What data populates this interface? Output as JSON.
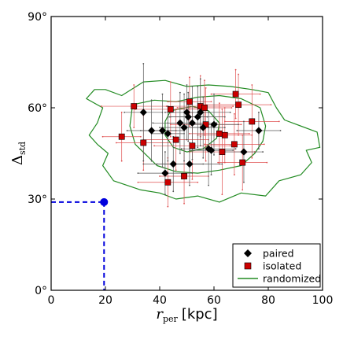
{
  "chart_data": {
    "type": "scatter",
    "xlim": [
      0,
      100
    ],
    "ylim": [
      0,
      90
    ],
    "x_ticks": [
      0,
      20,
      40,
      60,
      80,
      100
    ],
    "y_ticks": [
      0,
      30,
      60,
      90
    ],
    "x_tick_labels": [
      "0",
      "20",
      "40",
      "60",
      "80",
      "100"
    ],
    "y_tick_labels": [
      "0°",
      "30°",
      "60°",
      "90°"
    ],
    "xlabel_symbol": "r",
    "xlabel_subscript": "per",
    "xlabel_unit": "[kpc]",
    "ylabel_symbol": "Δ",
    "ylabel_subscript": "std",
    "grid": false,
    "legend_position": "lower-right",
    "legend": [
      {
        "label": "paired",
        "marker": "diamond",
        "color": "#000000"
      },
      {
        "label": "isolated",
        "marker": "square",
        "color": "#cc0000"
      },
      {
        "label": "randomized",
        "marker": "line",
        "color": "#228b22"
      }
    ],
    "series": [
      {
        "name": "paired",
        "color": "#000000",
        "marker": "diamond",
        "points": [
          {
            "x": 34,
            "y": 58.5,
            "xerr": 7,
            "yerr": 16
          },
          {
            "x": 37,
            "y": 52.5,
            "xerr": 9,
            "yerr": 10
          },
          {
            "x": 41,
            "y": 52.5,
            "xerr": 8,
            "yerr": 12
          },
          {
            "x": 42,
            "y": 38.5,
            "xerr": 10,
            "yerr": 7
          },
          {
            "x": 43,
            "y": 51.5,
            "xerr": 6,
            "yerr": 9
          },
          {
            "x": 45,
            "y": 41.5,
            "xerr": 11,
            "yerr": 9
          },
          {
            "x": 47.5,
            "y": 55,
            "xerr": 10,
            "yerr": 10
          },
          {
            "x": 49,
            "y": 53.5,
            "xerr": 9,
            "yerr": 11
          },
          {
            "x": 50,
            "y": 58.5,
            "xerr": 8,
            "yerr": 9
          },
          {
            "x": 50.5,
            "y": 57,
            "xerr": 7,
            "yerr": 8
          },
          {
            "x": 51,
            "y": 41.5,
            "xerr": 12,
            "yerr": 7
          },
          {
            "x": 52,
            "y": 55,
            "xerr": 9,
            "yerr": 12
          },
          {
            "x": 54,
            "y": 57,
            "xerr": 10,
            "yerr": 10
          },
          {
            "x": 55,
            "y": 58.5,
            "xerr": 11,
            "yerr": 11
          },
          {
            "x": 56,
            "y": 53.5,
            "xerr": 8,
            "yerr": 10
          },
          {
            "x": 58,
            "y": 46.5,
            "xerr": 10,
            "yerr": 12
          },
          {
            "x": 60,
            "y": 54.5,
            "xerr": 9,
            "yerr": 10
          },
          {
            "x": 59,
            "y": 46,
            "xerr": 8,
            "yerr": 8
          },
          {
            "x": 71,
            "y": 45.5,
            "xerr": 7,
            "yerr": 10
          },
          {
            "x": 76.5,
            "y": 52.5,
            "xerr": 8,
            "yerr": 6
          }
        ]
      },
      {
        "name": "isolated",
        "color": "#cc0000",
        "marker": "square",
        "points": [
          {
            "x": 26,
            "y": 50.5,
            "xerr": 7,
            "yerr": 8
          },
          {
            "x": 30.5,
            "y": 60.5,
            "xerr": 12,
            "yerr": 7
          },
          {
            "x": 34,
            "y": 48.5,
            "xerr": 10,
            "yerr": 9
          },
          {
            "x": 43,
            "y": 35.5,
            "xerr": 11,
            "yerr": 8
          },
          {
            "x": 44,
            "y": 59.5,
            "xerr": 13,
            "yerr": 9
          },
          {
            "x": 46,
            "y": 49.5,
            "xerr": 12,
            "yerr": 10
          },
          {
            "x": 49,
            "y": 37.5,
            "xerr": 9,
            "yerr": 9
          },
          {
            "x": 51,
            "y": 62,
            "xerr": 8,
            "yerr": 8
          },
          {
            "x": 52,
            "y": 47.5,
            "xerr": 14,
            "yerr": 11
          },
          {
            "x": 55,
            "y": 60.5,
            "xerr": 12,
            "yerr": 10
          },
          {
            "x": 56.5,
            "y": 60,
            "xerr": 10,
            "yerr": 9
          },
          {
            "x": 57,
            "y": 54.5,
            "xerr": 13,
            "yerr": 12
          },
          {
            "x": 62,
            "y": 51.5,
            "xerr": 11,
            "yerr": 10
          },
          {
            "x": 63,
            "y": 45.5,
            "xerr": 12,
            "yerr": 14
          },
          {
            "x": 64,
            "y": 51,
            "xerr": 10,
            "yerr": 9
          },
          {
            "x": 67.5,
            "y": 48,
            "xerr": 11,
            "yerr": 10
          },
          {
            "x": 68,
            "y": 64.5,
            "xerr": 9,
            "yerr": 8
          },
          {
            "x": 69,
            "y": 61,
            "xerr": 12,
            "yerr": 10
          },
          {
            "x": 70.5,
            "y": 42,
            "xerr": 9,
            "yerr": 9
          },
          {
            "x": 74,
            "y": 55.5,
            "xerr": 10,
            "yerr": 12
          }
        ]
      },
      {
        "name": "randomized",
        "color": "#228b22",
        "marker": "contour",
        "contours": [
          {
            "level": "outer",
            "points": [
              [
                20,
                66
              ],
              [
                26,
                64
              ],
              [
                34,
                68.5
              ],
              [
                42,
                69
              ],
              [
                50,
                67
              ],
              [
                58,
                67.5
              ],
              [
                66,
                67
              ],
              [
                74,
                66
              ],
              [
                80,
                65
              ],
              [
                83,
                60
              ],
              [
                86,
                56
              ],
              [
                98,
                52
              ],
              [
                99,
                47
              ],
              [
                94,
                46
              ],
              [
                96,
                42
              ],
              [
                92,
                38
              ],
              [
                84,
                36
              ],
              [
                79,
                31
              ],
              [
                70,
                32
              ],
              [
                62,
                29
              ],
              [
                54,
                31
              ],
              [
                46,
                30
              ],
              [
                40,
                32
              ],
              [
                33,
                33
              ],
              [
                23,
                36
              ],
              [
                19,
                41
              ],
              [
                21,
                45
              ],
              [
                17,
                48
              ],
              [
                14,
                51
              ],
              [
                17,
                55
              ],
              [
                19,
                60
              ],
              [
                13,
                63
              ],
              [
                16,
                66
              ],
              [
                20,
                66
              ]
            ]
          },
          {
            "level": "middle",
            "points": [
              [
                30,
                61
              ],
              [
                38,
                62.5
              ],
              [
                46,
                62
              ],
              [
                54,
                63.5
              ],
              [
                62,
                64
              ],
              [
                70,
                63
              ],
              [
                77,
                60
              ],
              [
                79,
                54
              ],
              [
                78,
                49
              ],
              [
                75,
                45
              ],
              [
                70,
                41
              ],
              [
                62,
                39.5
              ],
              [
                54,
                38.5
              ],
              [
                46,
                39
              ],
              [
                39,
                41
              ],
              [
                35,
                44.5
              ],
              [
                31,
                48
              ],
              [
                29,
                54
              ],
              [
                30,
                61
              ]
            ]
          },
          {
            "level": "inner",
            "points": [
              [
                44,
                59
              ],
              [
                52,
                60.5
              ],
              [
                58,
                59
              ],
              [
                62,
                55
              ],
              [
                61,
                50
              ],
              [
                56,
                46.5
              ],
              [
                50,
                45.5
              ],
              [
                45,
                47
              ],
              [
                42,
                51
              ],
              [
                42,
                55.5
              ],
              [
                44,
                59
              ]
            ]
          }
        ]
      }
    ],
    "annotation": {
      "marker": "circle",
      "color": "#0000dd",
      "x": 19.5,
      "y": 29,
      "linestyle": "dashed"
    }
  }
}
